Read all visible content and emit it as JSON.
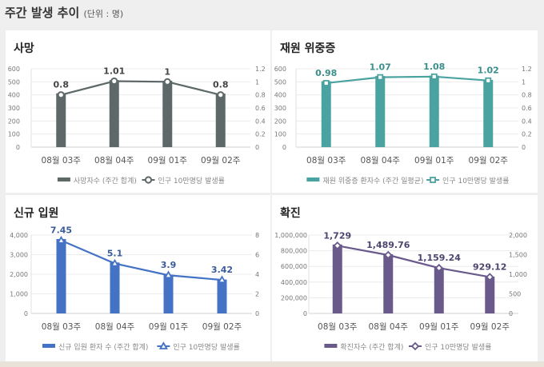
{
  "header": {
    "title": "주간 발생 추이",
    "unit": "(단위 : 명)"
  },
  "chart_data": [
    {
      "type": "bar+line",
      "title": "사망",
      "categories": [
        "08월 03주",
        "08월 04주",
        "09월 01주",
        "09월 02주"
      ],
      "series": [
        {
          "name": "사망자수 (주간 합계)",
          "type": "bar",
          "axis": "left",
          "values": [
            412,
            513,
            508,
            410
          ]
        },
        {
          "name": "인구 10만명당 발생률",
          "type": "line",
          "axis": "right",
          "marker": "circle",
          "values": [
            0.8,
            1.01,
            1,
            0.8
          ],
          "labels": [
            "0.8",
            "1.01",
            "1",
            "0.8"
          ]
        }
      ],
      "left_axis": {
        "ylim": [
          0,
          600
        ],
        "ticks": [
          "0",
          "100",
          "200",
          "300",
          "400",
          "500",
          "600"
        ]
      },
      "right_axis": {
        "ylim": [
          0,
          1.2
        ],
        "ticks": [
          "0",
          "0.2",
          "0.4",
          "0.6",
          "0.8",
          "1",
          "1.2"
        ]
      },
      "color": "#5e6868",
      "label_color": "#444444",
      "grid": true,
      "legend": "bottom"
    },
    {
      "type": "bar+line",
      "title": "재원 위중증",
      "categories": [
        "08월 03주",
        "08월 04주",
        "09월 01주",
        "09월 02주"
      ],
      "series": [
        {
          "name": "재원 위중증 환자수 (주간 일평균)",
          "type": "bar",
          "axis": "left",
          "values": [
            505,
            545,
            548,
            515
          ]
        },
        {
          "name": "인구 10만명당 발생률",
          "type": "line",
          "axis": "right",
          "marker": "square",
          "values": [
            0.98,
            1.07,
            1.08,
            1.02
          ],
          "labels": [
            "0.98",
            "1.07",
            "1.08",
            "1.02"
          ]
        }
      ],
      "left_axis": {
        "ylim": [
          0,
          600
        ],
        "ticks": [
          "0",
          "100",
          "200",
          "300",
          "400",
          "500",
          "600"
        ]
      },
      "right_axis": {
        "ylim": [
          0,
          1.2
        ],
        "ticks": [
          "0",
          "0.2",
          "0.4",
          "0.6",
          "0.8",
          "1",
          "1.2"
        ]
      },
      "color": "#4aa3a0",
      "label_color": "#3a8f8c",
      "grid": true,
      "legend": "bottom"
    },
    {
      "type": "bar+line",
      "title": "신규 입원",
      "categories": [
        "08월 03주",
        "08월 04주",
        "09월 01주",
        "09월 02주"
      ],
      "series": [
        {
          "name": "신규 입원 환자 수 (주간 합계)",
          "type": "bar",
          "axis": "left",
          "values": [
            3800,
            2600,
            1980,
            1730
          ]
        },
        {
          "name": "인구 10만명당 발생률",
          "type": "line",
          "axis": "right",
          "marker": "triangle",
          "values": [
            7.45,
            5.1,
            3.9,
            3.42
          ],
          "labels": [
            "7.45",
            "5.1",
            "3.9",
            "3.42"
          ]
        }
      ],
      "left_axis": {
        "ylim": [
          0,
          4000
        ],
        "ticks": [
          "0",
          "1,000",
          "2,000",
          "3,000",
          "4,000"
        ]
      },
      "right_axis": {
        "ylim": [
          0,
          8
        ],
        "ticks": [
          "0",
          "2",
          "4",
          "6",
          "8"
        ]
      },
      "color": "#4472c4",
      "label_color": "#3a5c9c",
      "grid": true,
      "legend": "bottom"
    },
    {
      "type": "bar+line",
      "title": "확진",
      "categories": [
        "08월 03주",
        "08월 04주",
        "09월 01주",
        "09월 02주"
      ],
      "series": [
        {
          "name": "확진자수 (주간 합계)",
          "type": "bar",
          "axis": "left",
          "values": [
            880000,
            755000,
            585000,
            470000
          ]
        },
        {
          "name": "인구 10만명당 발생률",
          "type": "line",
          "axis": "right",
          "marker": "diamond",
          "values": [
            1729,
            1489.76,
            1159.24,
            929.12
          ],
          "labels": [
            "1,729",
            "1,489.76",
            "1,159.24",
            "929.12"
          ]
        }
      ],
      "left_axis": {
        "ylim": [
          0,
          1000000
        ],
        "ticks": [
          "0",
          "200,000",
          "400,000",
          "600,000",
          "800,000",
          "1,000,000"
        ]
      },
      "right_axis": {
        "ylim": [
          0,
          2000
        ],
        "ticks": [
          "0",
          "500",
          "1,000",
          "1,500",
          "2,000"
        ]
      },
      "color": "#6a5a8c",
      "label_color": "#4e4470",
      "grid": true,
      "legend": "bottom"
    }
  ]
}
